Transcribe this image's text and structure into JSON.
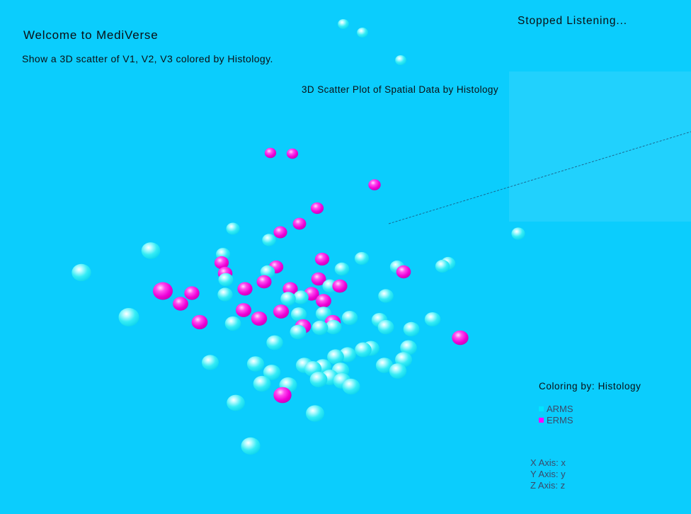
{
  "app": {
    "welcome": "Welcome to MediVerse",
    "prompt": "Show a 3D scatter of V1, V2, V3 colored by Histology.",
    "status": "Stopped Listening..."
  },
  "legend": {
    "title": "Coloring by: Histology",
    "items": [
      {
        "label": "ARMS",
        "color": "#00e5ff"
      },
      {
        "label": "ERMS",
        "color": "#ff00ff"
      }
    ]
  },
  "axes": {
    "x": "X Axis: x",
    "y": "Y Axis: y",
    "z": "Z Axis: z"
  },
  "chart_data": {
    "type": "scatter",
    "title": "3D Scatter Plot of Spatial Data by Histology",
    "xlabel": "",
    "ylabel": "",
    "series": [
      {
        "name": "ARMS",
        "color": "#00e5ff",
        "points": [
          [
            485,
            34
          ],
          [
            512,
            46
          ],
          [
            566,
            85
          ],
          [
            732,
            330
          ],
          [
            115,
            385
          ],
          [
            213,
            354
          ],
          [
            182,
            448
          ],
          [
            329,
            323
          ],
          [
            380,
            339
          ],
          [
            315,
            359
          ],
          [
            378,
            384
          ],
          [
            319,
            395
          ],
          [
            318,
            416
          ],
          [
            407,
            422
          ],
          [
            425,
            420
          ],
          [
            422,
            444
          ],
          [
            483,
            380
          ],
          [
            511,
            365
          ],
          [
            561,
            377
          ],
          [
            545,
            418
          ],
          [
            625,
            376
          ],
          [
            633,
            372
          ],
          [
            466,
            404
          ],
          [
            457,
            443
          ],
          [
            494,
            449
          ],
          [
            536,
            452
          ],
          [
            545,
            462
          ],
          [
            581,
            465
          ],
          [
            611,
            451
          ],
          [
            329,
            457
          ],
          [
            421,
            469
          ],
          [
            452,
            463
          ],
          [
            471,
            462
          ],
          [
            388,
            484
          ],
          [
            297,
            512
          ],
          [
            361,
            514
          ],
          [
            384,
            526
          ],
          [
            370,
            542
          ],
          [
            407,
            544
          ],
          [
            430,
            516
          ],
          [
            456,
            518
          ],
          [
            474,
            504
          ],
          [
            491,
            501
          ],
          [
            513,
            494
          ],
          [
            524,
            492
          ],
          [
            577,
            491
          ],
          [
            570,
            508
          ],
          [
            543,
            516
          ],
          [
            562,
            524
          ],
          [
            450,
            536
          ],
          [
            466,
            533
          ],
          [
            481,
            523
          ],
          [
            483,
            538
          ],
          [
            496,
            546
          ],
          [
            445,
            584
          ],
          [
            333,
            569
          ],
          [
            354,
            630
          ],
          [
            442,
            521
          ]
        ]
      },
      {
        "name": "ERMS",
        "color": "#ff00ff",
        "points": [
          [
            382,
            216
          ],
          [
            413,
            217
          ],
          [
            529,
            261
          ],
          [
            448,
            294
          ],
          [
            423,
            316
          ],
          [
            396,
            328
          ],
          [
            313,
            371
          ],
          [
            318,
            386
          ],
          [
            390,
            377
          ],
          [
            373,
            398
          ],
          [
            450,
            394
          ],
          [
            455,
            366
          ],
          [
            230,
            411
          ],
          [
            271,
            414
          ],
          [
            255,
            429
          ],
          [
            346,
            408
          ],
          [
            410,
            408
          ],
          [
            440,
            415
          ],
          [
            480,
            404
          ],
          [
            457,
            425
          ],
          [
            344,
            438
          ],
          [
            397,
            440
          ],
          [
            282,
            455
          ],
          [
            366,
            450
          ],
          [
            428,
            461
          ],
          [
            470,
            455
          ],
          [
            570,
            384
          ],
          [
            650,
            477
          ],
          [
            399,
            558
          ]
        ]
      }
    ],
    "grid": false,
    "legend_position": "bottom-right"
  }
}
